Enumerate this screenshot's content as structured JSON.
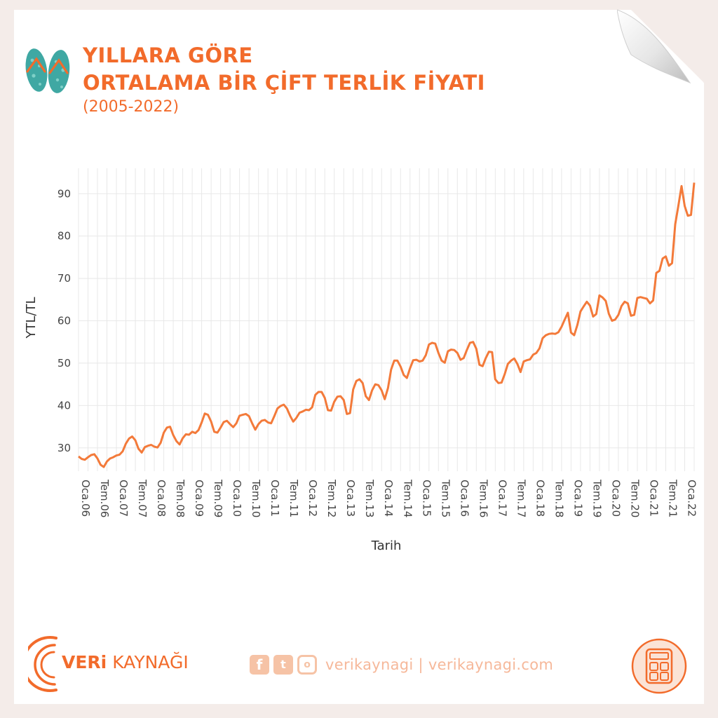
{
  "header": {
    "title_line1": "YILLARA GÖRE",
    "title_line2": "ORTALAMA BİR ÇİFT TERLİK FİYATI",
    "subtitle": "(2005-2022)",
    "icon": "flip-flops-icon"
  },
  "colors": {
    "accent": "#f26b2b",
    "line": "#f37a3a",
    "grid": "#e8e8e8",
    "social": "#f6b89a"
  },
  "footer": {
    "brand_bold": "VERi",
    "brand_rest": " KAYNAĞI",
    "social_text": "verikaynagi | verikaynagi.com",
    "icons": [
      "facebook-icon",
      "twitter-icon",
      "instagram-icon",
      "calculator-icon"
    ]
  },
  "chart_data": {
    "type": "line",
    "xlabel": "Tarih",
    "ylabel": "YTL/TL",
    "ylim": [
      24.5,
      96
    ],
    "yticks": [
      30,
      40,
      50,
      60,
      70,
      80,
      90
    ],
    "grid": true,
    "x_start": "2006-01",
    "x_ticks": [
      "Oca.06",
      "Tem.06",
      "Oca.07",
      "Tem.07",
      "Oca.08",
      "Tem.08",
      "Oca.09",
      "Tem.09",
      "Oca.10",
      "Tem.10",
      "Oca.11",
      "Tem.11",
      "Oca.12",
      "Tem.12",
      "Oca.13",
      "Tem.13",
      "Oca.14",
      "Tem.14",
      "Oca.15",
      "Tem.15",
      "Oca.16",
      "Tem.16",
      "Oca.17",
      "Tem.17",
      "Oca.18",
      "Tem.18",
      "Oca.19",
      "Tem.19",
      "Oca.20",
      "Tem.20",
      "Oca.21",
      "Tem.21",
      "Oca.22"
    ],
    "series": [
      {
        "values": [
          28.0,
          27.4,
          27.2,
          27.8,
          28.3,
          28.5,
          27.5,
          26.0,
          25.5,
          26.8,
          27.5,
          27.8,
          28.2,
          28.4,
          29.2,
          31.0,
          32.2,
          32.7,
          31.8,
          29.8,
          28.9,
          30.2,
          30.5,
          30.7,
          30.3,
          30.1,
          31.2,
          33.6,
          34.8,
          35.0,
          33.0,
          31.6,
          30.8,
          32.3,
          33.2,
          33.1,
          33.8,
          33.5,
          34.2,
          36.0,
          38.1,
          37.8,
          36.2,
          33.8,
          33.6,
          34.8,
          36.1,
          36.4,
          35.6,
          34.9,
          35.8,
          37.6,
          37.8,
          38.0,
          37.5,
          35.8,
          34.3,
          35.6,
          36.4,
          36.6,
          36.0,
          35.8,
          37.5,
          39.3,
          39.9,
          40.2,
          39.3,
          37.6,
          36.2,
          37.1,
          38.3,
          38.6,
          39.0,
          38.9,
          39.6,
          42.5,
          43.2,
          43.2,
          41.8,
          38.9,
          38.8,
          40.9,
          42.1,
          42.2,
          41.3,
          38.0,
          38.2,
          43.8,
          45.8,
          46.2,
          45.3,
          42.2,
          41.3,
          43.6,
          45.0,
          44.8,
          43.6,
          41.5,
          44.1,
          48.5,
          50.6,
          50.6,
          49.2,
          47.2,
          46.5,
          48.8,
          50.7,
          50.8,
          50.4,
          50.6,
          51.9,
          54.4,
          54.8,
          54.6,
          52.4,
          50.6,
          50.1,
          52.8,
          53.2,
          53.1,
          52.4,
          50.8,
          51.2,
          53.1,
          54.8,
          55.0,
          53.4,
          49.6,
          49.3,
          51.2,
          52.7,
          52.6,
          46.2,
          45.3,
          45.4,
          47.4,
          49.8,
          50.6,
          51.1,
          49.8,
          47.9,
          50.4,
          50.7,
          50.9,
          52.0,
          52.4,
          53.5,
          55.9,
          56.6,
          56.9,
          57.0,
          56.9,
          57.3,
          58.6,
          60.3,
          61.9,
          57.2,
          56.6,
          59.0,
          62.2,
          63.4,
          64.5,
          63.6,
          61.0,
          61.6,
          66.0,
          65.5,
          64.7,
          61.6,
          60.0,
          60.3,
          61.4,
          63.5,
          64.5,
          64.1,
          61.2,
          61.4,
          65.4,
          65.6,
          65.4,
          65.2,
          64.1,
          64.8,
          71.3,
          71.8,
          74.7,
          75.2,
          73.0,
          73.6,
          82.8,
          87.2,
          91.8,
          87.1,
          84.8,
          85.0,
          92.6
        ]
      }
    ]
  }
}
